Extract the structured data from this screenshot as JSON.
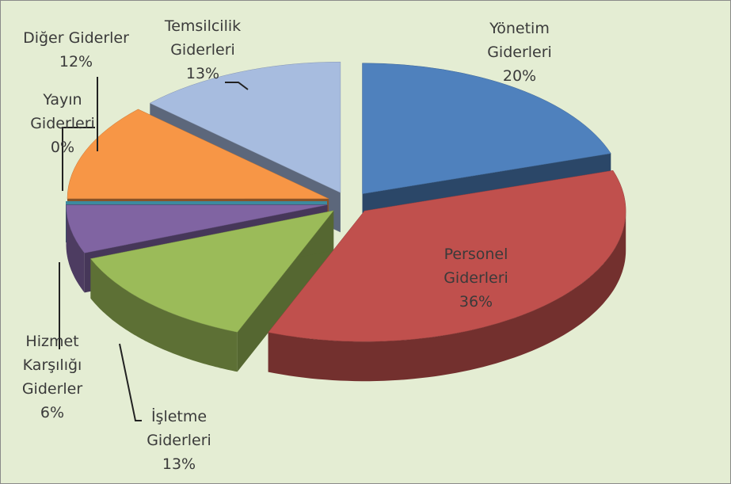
{
  "chart_data": {
    "type": "pie3d",
    "categories": [
      "Yönetim Giderleri",
      "Personel Giderleri",
      "İşletme Giderleri",
      "Hizmet Karşılığı Giderler",
      "Yayın Giderleri",
      "Diğer Giderler",
      "Temsilcilik Giderleri"
    ],
    "values": [
      20,
      36,
      13,
      6,
      0,
      12,
      13
    ],
    "value_labels": [
      "20%",
      "36%",
      "13%",
      "6%",
      "0%",
      "12%",
      "13%"
    ],
    "colors": [
      "#4f81bd",
      "#c0504d",
      "#9bbb59",
      "#8064a2",
      "#4bacc6",
      "#f79646",
      "#a7bcdf"
    ]
  }
}
